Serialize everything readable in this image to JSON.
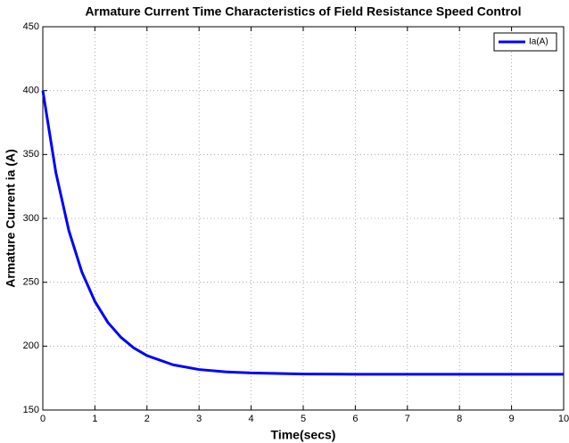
{
  "chart_data": {
    "type": "line",
    "title": "Armature Current Time Characteristics of Field Resistance Speed Control",
    "xlabel": "Time(secs)",
    "ylabel": "Armature Current ia (A)",
    "x": [
      0,
      0.25,
      0.5,
      0.75,
      1,
      1.25,
      1.5,
      1.75,
      2,
      2.5,
      3,
      3.5,
      4,
      5,
      6,
      7,
      8,
      9,
      10
    ],
    "series": [
      {
        "name": "Ia(A)",
        "color": "#0000ff",
        "values": [
          400,
          336,
          290.4,
          258,
          235,
          218.5,
          206.9,
          198.5,
          192.6,
          185.4,
          181.7,
          179.9,
          179,
          178.2,
          178,
          178,
          178,
          178,
          178
        ]
      }
    ],
    "xlim": [
      0,
      10
    ],
    "xticks": [
      0,
      1,
      2,
      3,
      4,
      5,
      6,
      7,
      8,
      9,
      10
    ],
    "ylim": [
      150,
      450
    ],
    "yticks": [
      150,
      200,
      250,
      300,
      350,
      400,
      450
    ],
    "grid": true,
    "legend": "upper right"
  }
}
